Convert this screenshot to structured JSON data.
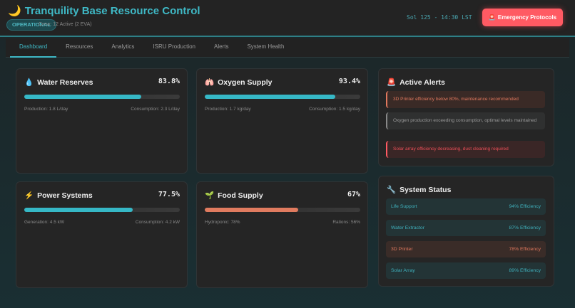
{
  "header": {
    "title": "Tranquility Base Resource Control",
    "title_icon": "moon-icon",
    "status": "OPERATIONAL",
    "crew": "Crew: 12 Active (2 EVA)",
    "sol_time": "Sol 125 - 14:30 LST",
    "emergency_label": "Emergency Protocols"
  },
  "nav": {
    "tabs": [
      {
        "label": "Dashboard",
        "active": true
      },
      {
        "label": "Resources"
      },
      {
        "label": "Analytics"
      },
      {
        "label": "ISRU Production"
      },
      {
        "label": "Alerts"
      },
      {
        "label": "System Health"
      }
    ]
  },
  "resources": [
    {
      "title": "Water Reserves",
      "icon": "droplet-icon",
      "value": "83.8%",
      "level": 83.8,
      "left": "Production: 1.8 L/day",
      "right": "Consumption: 2.3 L/day",
      "color": "#36b8c6"
    },
    {
      "title": "Oxygen Supply",
      "icon": "lungs-icon",
      "value": "93.4%",
      "level": 93.4,
      "left": "Production: 1.7 kg/day",
      "right": "Consumption: 1.5 kg/day",
      "color": "#36b8c6"
    },
    {
      "title": "Power Systems",
      "icon": "lightning-icon",
      "value": "77.5%",
      "level": 77.5,
      "left": "Generation: 4.5 kW",
      "right": "Consumption: 4.2 kW",
      "color": "#36b8c6"
    },
    {
      "title": "Food Supply",
      "icon": "seedling-icon",
      "value": "67%",
      "level": 67,
      "left": "Hydroponic: 78%",
      "right": "Rations: 56%",
      "color": "#e07b5f"
    }
  ],
  "alerts": {
    "title": "Active Alerts",
    "icon": "siren-icon",
    "items": [
      {
        "text": "3D Printer efficiency below 80%, maintenance recommended",
        "level": "warning"
      },
      {
        "text": "Oxygen production exceeding consumption, optimal levels maintained",
        "level": "info"
      },
      {
        "text": "Solar array efficiency decreasing, dust cleaning required",
        "level": "critical"
      }
    ]
  },
  "system": {
    "title": "System Status",
    "icon": "wrench-icon",
    "items": [
      {
        "name": "Life Support",
        "value": "94% Efficiency"
      },
      {
        "name": "Water Extractor",
        "value": "87% Efficiency"
      },
      {
        "name": "3D Printer",
        "value": "78% Efficiency",
        "warn": true
      },
      {
        "name": "Solar Array",
        "value": "89% Efficiency"
      }
    ]
  }
}
